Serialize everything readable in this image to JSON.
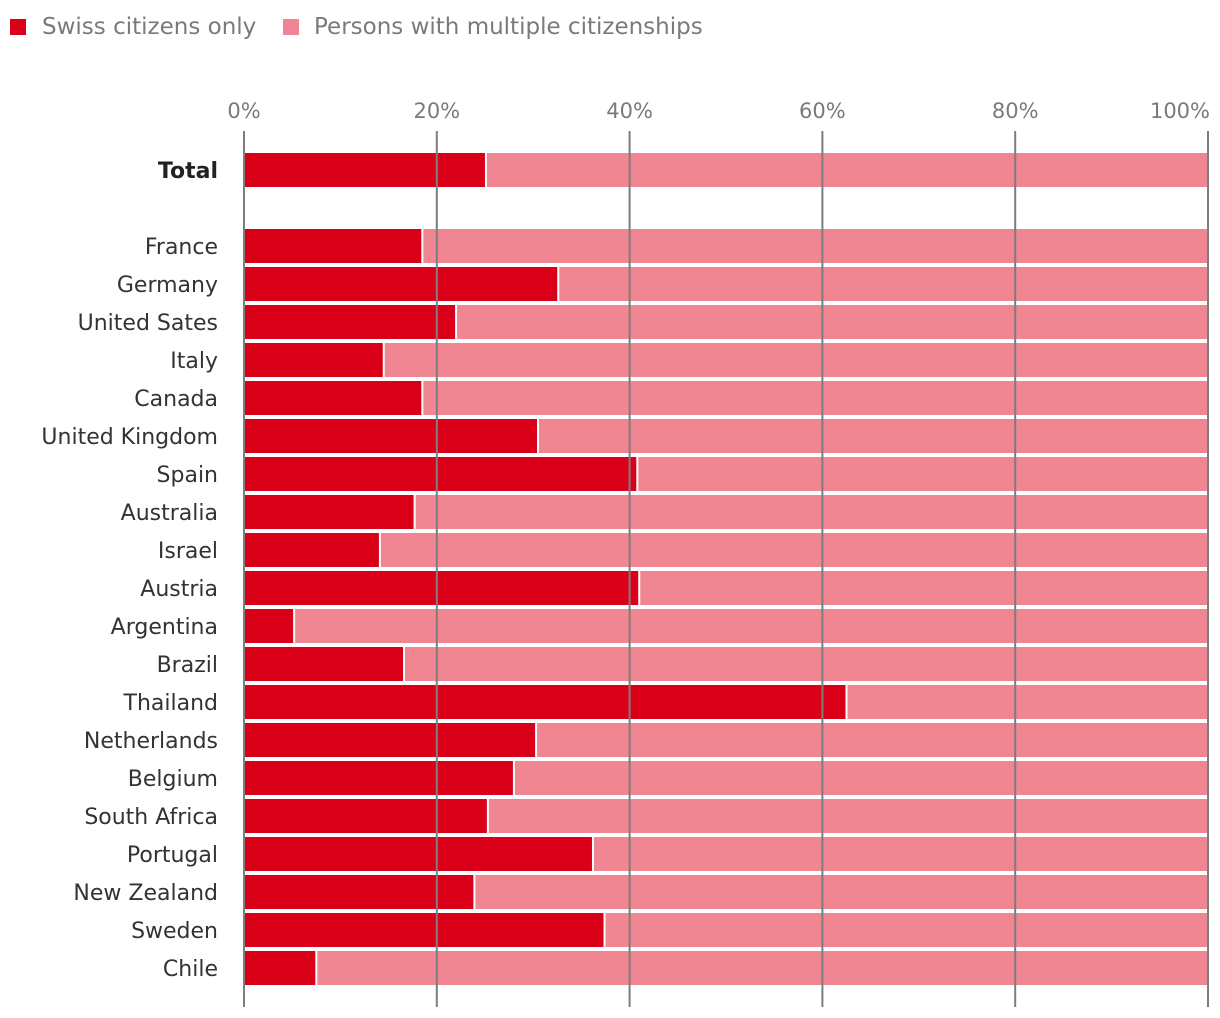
{
  "chart_data": {
    "type": "bar",
    "orientation": "horizontal",
    "stacked": true,
    "normalized_percent": true,
    "title": "",
    "xlabel": "",
    "ylabel": "",
    "xlim": [
      0,
      100
    ],
    "x_ticks": [
      0,
      20,
      40,
      60,
      80,
      100
    ],
    "x_tick_labels": [
      "0%",
      "20%",
      "40%",
      "60%",
      "80%",
      "100%"
    ],
    "grid": true,
    "legend_position": "top-left",
    "total_label": "Total",
    "categories": [
      "France",
      "Germany",
      "United Sates",
      "Italy",
      "Canada",
      "United Kingdom",
      "Spain",
      "Australia",
      "Israel",
      "Austria",
      "Argentina",
      "Brazil",
      "Thailand",
      "Netherlands",
      "Belgium",
      "South Africa",
      "Portugal",
      "New Zealand",
      "Sweden",
      "Chile"
    ],
    "series": [
      {
        "name": "Swiss citizens only",
        "color": "#da001a",
        "total": 25.1,
        "values": [
          18.5,
          32.6,
          22.0,
          14.5,
          18.5,
          30.5,
          40.8,
          17.7,
          14.1,
          41.0,
          5.2,
          16.6,
          62.5,
          30.3,
          28.0,
          25.3,
          36.2,
          23.9,
          37.4,
          7.5
        ]
      },
      {
        "name": "Persons with multiple citizenships",
        "color": "#ef8691",
        "total": 74.9,
        "values": [
          81.5,
          67.4,
          78.0,
          85.5,
          81.5,
          69.5,
          59.2,
          82.3,
          85.9,
          59.0,
          94.8,
          83.4,
          37.5,
          69.7,
          72.0,
          74.7,
          63.8,
          76.1,
          62.6,
          92.5
        ]
      }
    ]
  }
}
